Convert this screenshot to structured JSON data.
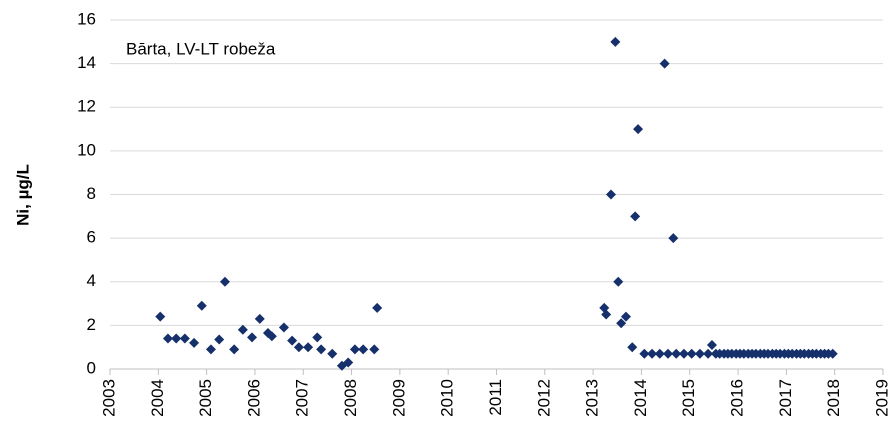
{
  "chart_data": {
    "type": "scatter",
    "annotation": "Bārta, LV-LT robeža",
    "y_label": "Ni, µg/L",
    "color": "#16306b",
    "grid": true,
    "xlim": [
      2003,
      2019
    ],
    "xticks": [
      2003,
      2004,
      2005,
      2006,
      2007,
      2008,
      2009,
      2010,
      2011,
      2012,
      2013,
      2014,
      2015,
      2016,
      2017,
      2018,
      2019
    ],
    "ylim": [
      0,
      16
    ],
    "yticks": [
      0,
      2,
      4,
      6,
      8,
      10,
      12,
      14,
      16
    ],
    "x": [
      2004.04,
      2004.2,
      2004.37,
      2004.55,
      2004.74,
      2004.9,
      2005.09,
      2005.26,
      2005.38,
      2005.57,
      2005.75,
      2005.94,
      2006.1,
      2006.27,
      2006.35,
      2006.6,
      2006.77,
      2006.91,
      2007.1,
      2007.29,
      2007.37,
      2007.6,
      2007.8,
      2007.93,
      2008.07,
      2008.24,
      2008.47,
      2008.53,
      2013.23,
      2013.27,
      2013.37,
      2013.46,
      2013.52,
      2013.58,
      2013.68,
      2013.81,
      2013.87,
      2013.93,
      2014.06,
      2014.22,
      2014.38,
      2014.48,
      2014.55,
      2014.66,
      2014.72,
      2014.88,
      2015.04,
      2015.21,
      2015.38,
      2015.46,
      2015.54,
      2015.62,
      2015.71,
      2015.79,
      2015.87,
      2015.96,
      2016.04,
      2016.12,
      2016.21,
      2016.29,
      2016.37,
      2016.46,
      2016.54,
      2016.62,
      2016.71,
      2016.79,
      2016.87,
      2016.96,
      2017.04,
      2017.12,
      2017.21,
      2017.29,
      2017.37,
      2017.46,
      2017.54,
      2017.62,
      2017.71,
      2017.79,
      2017.87,
      2017.96
    ],
    "values": [
      2.4,
      1.4,
      1.4,
      1.4,
      1.2,
      2.9,
      0.9,
      1.35,
      4.0,
      0.9,
      1.8,
      1.45,
      2.3,
      1.65,
      1.5,
      1.9,
      1.3,
      1.0,
      1.0,
      1.45,
      0.9,
      0.7,
      0.15,
      0.3,
      0.9,
      0.9,
      0.9,
      2.8,
      2.8,
      2.5,
      8.0,
      15.0,
      4.0,
      2.1,
      2.4,
      1.0,
      7.0,
      11.0,
      0.7,
      0.7,
      0.7,
      14.0,
      0.7,
      6.0,
      0.7,
      0.7,
      0.7,
      0.7,
      0.7,
      1.1,
      0.7,
      0.7,
      0.7,
      0.7,
      0.7,
      0.7,
      0.7,
      0.7,
      0.7,
      0.7,
      0.7,
      0.7,
      0.7,
      0.7,
      0.7,
      0.7,
      0.7,
      0.7,
      0.7,
      0.7,
      0.7,
      0.7,
      0.7,
      0.7,
      0.7,
      0.7,
      0.7,
      0.7,
      0.7,
      0.7
    ]
  }
}
